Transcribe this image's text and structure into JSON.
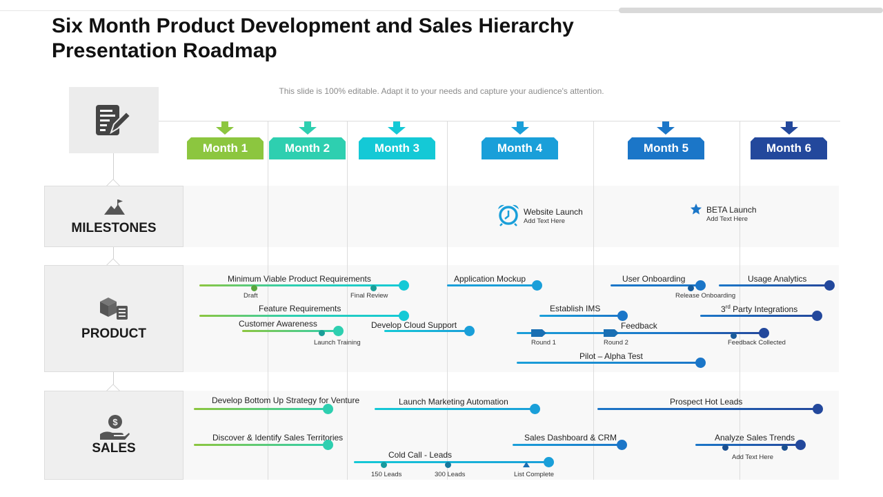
{
  "title": "Six Month Product Development and Sales Hierarchy Presentation Roadmap",
  "subtitle": "This slide is 100% editable. Adapt it to your needs and capture your audience's attention.",
  "months": [
    "Month 1",
    "Month 2",
    "Month 3",
    "Month 4",
    "Month 5",
    "Month 6"
  ],
  "colors": {
    "green": "#8cc63f",
    "teal": "#2ecfb0",
    "cyan": "#14c9d6",
    "sky": "#1a9fd9",
    "blue": "#1b76c8",
    "navy": "#23489c"
  },
  "sections": {
    "milestones": "MILESTONES",
    "product": "PRODUCT",
    "sales": "SALES"
  },
  "milestones": {
    "website_launch": "Website Launch",
    "website_sub": "Add Text Here",
    "beta_launch": "BETA Launch",
    "beta_sub": "Add Text Here"
  },
  "product": {
    "mvp": "Minimum Viable Product Requirements",
    "draft": "Draft",
    "final_review": "Final Review",
    "feature_req": "Feature Requirements",
    "customer_awareness": "Customer Awareness",
    "launch_training": "Launch Training",
    "app_mockup": "Application Mockup",
    "develop_cloud": "Develop Cloud Support",
    "user_onboarding": "User Onboarding",
    "release_onboarding": "Release Onboarding",
    "usage_analytics": "Usage Analytics",
    "establish_ims": "Establish IMS",
    "third_party_prefix": "3",
    "third_party_sup": "rd",
    "third_party_rest": " Party Integrations",
    "feedback": "Feedback",
    "round1": "Round 1",
    "round2": "Round 2",
    "feedback_collected": "Feedback Collected",
    "pilot": "Pilot – Alpha Test"
  },
  "sales": {
    "bottom_up": "Develop Bottom Up Strategy for Venture",
    "launch_marketing": "Launch Marketing Automation",
    "prospect": "Prospect Hot Leads",
    "discover": "Discover & Identify Sales Territories",
    "dashboard": "Sales Dashboard & CRM",
    "analyze": "Analyze  Sales Trends",
    "analyze_sub": "Add Text Here",
    "cold_call": "Cold Call - Leads",
    "leads150": "150 Leads",
    "leads300": "300 Leads",
    "list_complete": "List Complete"
  }
}
